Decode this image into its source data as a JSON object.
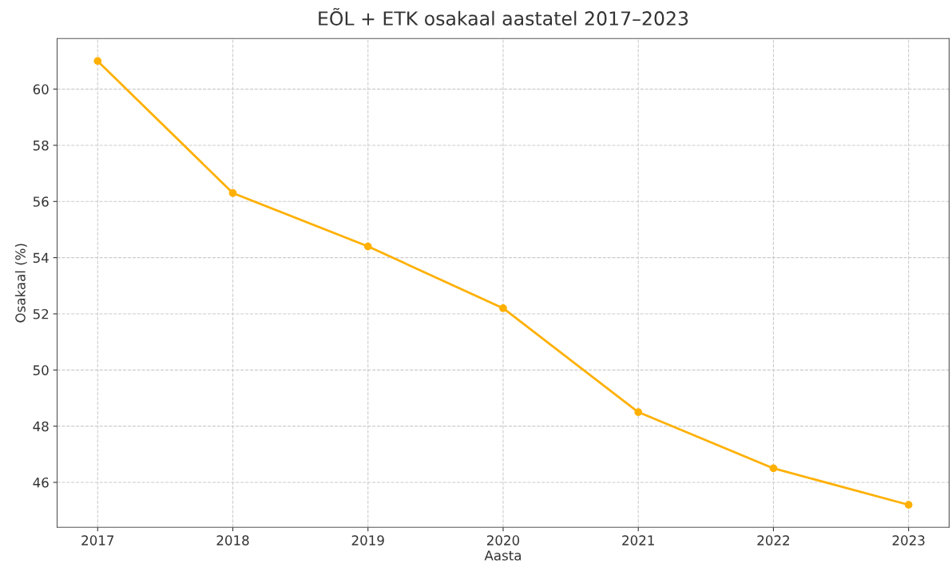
{
  "chart_data": {
    "type": "line",
    "title": "EÕL + ETK osakaal aastatel 2017–2023",
    "xlabel": "Aasta",
    "ylabel": "Osakaal (%)",
    "x": [
      2017,
      2018,
      2019,
      2020,
      2021,
      2022,
      2023
    ],
    "series": [
      {
        "color": "#ffb000",
        "values": [
          61.0,
          56.3,
          54.4,
          52.2,
          48.5,
          46.5,
          45.2
        ]
      }
    ],
    "xlim": [
      2016.7,
      2023.3
    ],
    "xticks": [
      2017,
      2018,
      2019,
      2020,
      2021,
      2022,
      2023
    ],
    "ylim": [
      44.4,
      61.8
    ],
    "yticks": [
      46,
      48,
      50,
      52,
      54,
      56,
      58,
      60
    ],
    "grid": true,
    "marker": "circle",
    "line_style": "solid"
  }
}
